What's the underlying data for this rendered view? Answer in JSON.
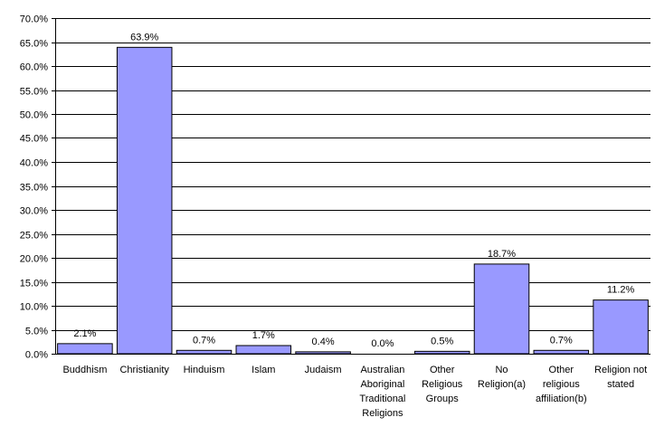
{
  "chart_data": {
    "type": "bar",
    "title": "",
    "xlabel": "",
    "ylabel": "",
    "ylim": [
      0,
      70
    ],
    "ytick_step": 5,
    "ytick_labels": [
      "0.0%",
      "5.0%",
      "10.0%",
      "15.0%",
      "20.0%",
      "25.0%",
      "30.0%",
      "35.0%",
      "40.0%",
      "45.0%",
      "50.0%",
      "55.0%",
      "60.0%",
      "65.0%",
      "70.0%"
    ],
    "grid": true,
    "legend": "none",
    "bar_color": "#9999ff",
    "categories": [
      [
        "Buddhism"
      ],
      [
        "Christianity"
      ],
      [
        "Hinduism"
      ],
      [
        "Islam"
      ],
      [
        "Judaism"
      ],
      [
        "Australian",
        "Aboriginal",
        "Traditional",
        "Religions"
      ],
      [
        "Other",
        "Religious",
        "Groups"
      ],
      [
        "No",
        "Religion(a)"
      ],
      [
        "Other",
        "religious",
        "affiliation(b)"
      ],
      [
        "Religion not",
        "stated"
      ]
    ],
    "values": [
      2.1,
      63.9,
      0.7,
      1.7,
      0.4,
      0.0,
      0.5,
      18.7,
      0.7,
      11.2
    ],
    "value_labels": [
      "2.1%",
      "63.9%",
      "0.7%",
      "1.7%",
      "0.4%",
      "0.0%",
      "0.5%",
      "18.7%",
      "0.7%",
      "11.2%"
    ]
  }
}
